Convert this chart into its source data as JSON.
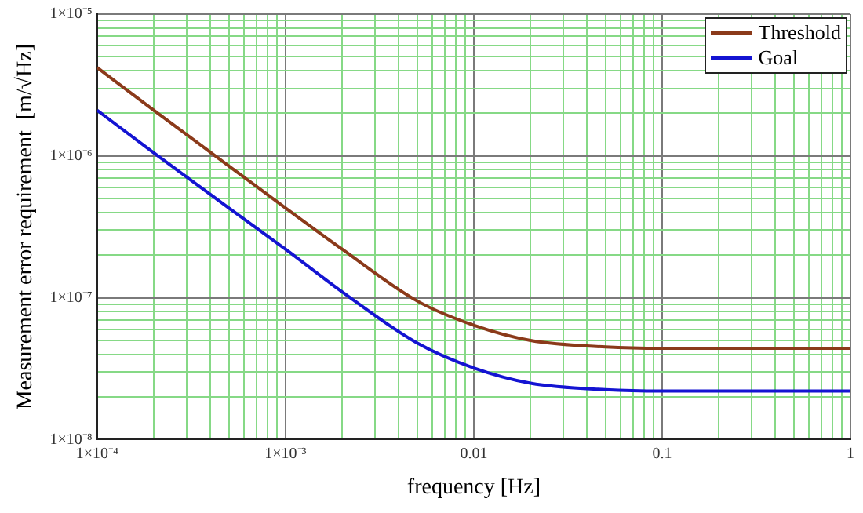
{
  "chart_data": {
    "type": "line",
    "xlabel": "frequency [Hz]",
    "ylabel": "Measurement error requirement  [m/√Hz]",
    "x": [
      0.0001,
      0.0002,
      0.0005,
      0.001,
      0.002,
      0.005,
      0.01,
      0.02,
      0.05,
      0.1,
      1
    ],
    "series": [
      {
        "name": "Threshold",
        "color": "#8b3a1a",
        "values": [
          4.2e-06,
          2.1e-06,
          8.5e-07,
          4.3e-07,
          2.2e-07,
          9.5e-08,
          6.4e-08,
          5e-08,
          4.5e-08,
          4.4e-08,
          4.4e-08
        ]
      },
      {
        "name": "Goal",
        "color": "#1414d2",
        "values": [
          2.1e-06,
          1.05e-06,
          4.3e-07,
          2.2e-07,
          1.1e-07,
          4.8e-08,
          3.2e-08,
          2.5e-08,
          2.25e-08,
          2.2e-08,
          2.2e-08
        ]
      }
    ],
    "log": "xy",
    "xlim": [
      0.0001,
      1
    ],
    "ylim": [
      1e-08,
      1e-05
    ],
    "xticks": [
      {
        "value": 0.0001,
        "label": "1×10⁻⁴"
      },
      {
        "value": 0.0002,
        "label": null
      },
      {
        "value": 0.0003,
        "label": null
      },
      {
        "value": 0.0004,
        "label": null
      },
      {
        "value": 0.0005,
        "label": null
      },
      {
        "value": 0.0006,
        "label": null
      },
      {
        "value": 0.0007,
        "label": null
      },
      {
        "value": 0.0008,
        "label": null
      },
      {
        "value": 0.0009,
        "label": null
      },
      {
        "value": 0.001,
        "label": "1×10⁻³"
      },
      {
        "value": 0.002,
        "label": null
      },
      {
        "value": 0.003,
        "label": null
      },
      {
        "value": 0.004,
        "label": null
      },
      {
        "value": 0.005,
        "label": null
      },
      {
        "value": 0.006,
        "label": null
      },
      {
        "value": 0.007,
        "label": null
      },
      {
        "value": 0.008,
        "label": null
      },
      {
        "value": 0.009,
        "label": null
      },
      0.01,
      {
        "value": 0.02,
        "label": null
      },
      {
        "value": 0.03,
        "label": null
      },
      {
        "value": 0.04,
        "label": null
      },
      {
        "value": 0.05,
        "label": null
      },
      {
        "value": 0.06,
        "label": null
      },
      {
        "value": 0.07,
        "label": null
      },
      {
        "value": 0.08,
        "label": null
      },
      {
        "value": 0.09,
        "label": null
      },
      0.1,
      {
        "value": 0.2,
        "label": null
      },
      {
        "value": 0.3,
        "label": null
      },
      {
        "value": 0.4,
        "label": null
      },
      {
        "value": 0.5,
        "label": null
      },
      {
        "value": 0.6,
        "label": null
      },
      {
        "value": 0.7,
        "label": null
      },
      {
        "value": 0.8,
        "label": null
      },
      {
        "value": 0.9,
        "label": null
      },
      1
    ],
    "yticks": [
      {
        "value": 1e-08,
        "label": "1×10⁻⁸"
      },
      {
        "value": 2e-08,
        "label": null
      },
      {
        "value": 3e-08,
        "label": null
      },
      {
        "value": 4e-08,
        "label": null
      },
      {
        "value": 5e-08,
        "label": null
      },
      {
        "value": 6e-08,
        "label": null
      },
      {
        "value": 7e-08,
        "label": null
      },
      {
        "value": 8e-08,
        "label": null
      },
      {
        "value": 9e-08,
        "label": null
      },
      {
        "value": 1e-07,
        "label": "1×10⁻⁷"
      },
      {
        "value": 2e-07,
        "label": null
      },
      {
        "value": 3e-07,
        "label": null
      },
      {
        "value": 4e-07,
        "label": null
      },
      {
        "value": 5e-07,
        "label": null
      },
      {
        "value": 6e-07,
        "label": null
      },
      {
        "value": 7e-07,
        "label": null
      },
      {
        "value": 8e-07,
        "label": null
      },
      {
        "value": 9e-07,
        "label": null
      },
      {
        "value": 1e-06,
        "label": "1×10⁻⁶"
      },
      {
        "value": 2e-06,
        "label": null
      },
      {
        "value": 3e-06,
        "label": null
      },
      {
        "value": 4e-06,
        "label": null
      },
      {
        "value": 5e-06,
        "label": null
      },
      {
        "value": 6e-06,
        "label": null
      },
      {
        "value": 7e-06,
        "label": null
      },
      {
        "value": 8e-06,
        "label": null
      },
      {
        "value": 9e-06,
        "label": null
      },
      {
        "value": 1e-05,
        "label": "1×10⁻⁵"
      }
    ],
    "grid": true,
    "legend": "top right",
    "marker": "none",
    "line_style": "solid"
  }
}
